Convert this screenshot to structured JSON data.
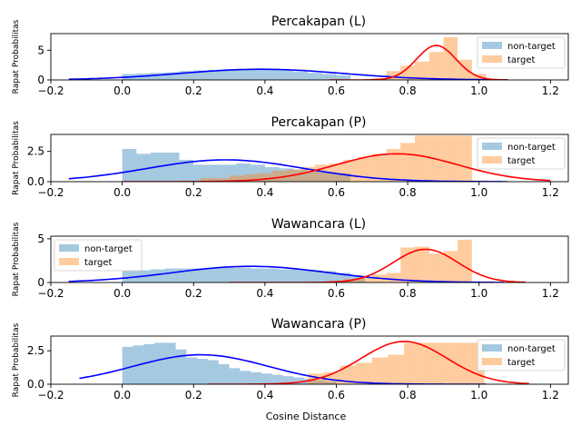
{
  "figure": {
    "xlabel": "Cosine Distance"
  },
  "chart_data": [
    {
      "type": "bar",
      "title": "Percakapan (L)",
      "ylabel": "Rapat Probabilitas",
      "xlim": [
        -0.2,
        1.25
      ],
      "ylim": [
        0,
        7.8
      ],
      "xticks": [
        "−0.2",
        "0.0",
        "0.2",
        "0.4",
        "0.6",
        "0.8",
        "1.0",
        "1.2"
      ],
      "yticks": [
        "0",
        "5"
      ],
      "legend": {
        "position": "top-right",
        "non_target": "non-target",
        "target": "target"
      },
      "nontarget_hist": {
        "start": 0.0,
        "width": 0.04,
        "values": [
          1.0,
          1.1,
          1.2,
          1.3,
          1.5,
          1.6,
          1.7,
          1.8,
          1.8,
          1.8,
          1.7,
          1.6,
          1.4,
          1.2,
          1.0,
          0.8
        ]
      },
      "target_hist": {
        "start": 0.7,
        "width": 0.04,
        "values": [
          0.3,
          1.5,
          2.4,
          3.1,
          4.7,
          7.2,
          3.4,
          1.0
        ]
      },
      "nontarget_fit": {
        "mean": 0.39,
        "sd": 0.23,
        "peak": 1.8,
        "range": [
          -0.15,
          1.08
        ]
      },
      "target_fit": {
        "mean": 0.88,
        "sd": 0.055,
        "peak": 5.8,
        "range": [
          0.58,
          1.08
        ]
      }
    },
    {
      "type": "bar",
      "title": "Percakapan (P)",
      "ylabel": "Rapat Probabilitas",
      "xlim": [
        -0.2,
        1.25
      ],
      "ylim": [
        0,
        3.9
      ],
      "xticks": [
        "−0.2",
        "0.0",
        "0.2",
        "0.4",
        "0.6",
        "0.8",
        "1.0",
        "1.2"
      ],
      "yticks": [
        "0.0",
        "2.5"
      ],
      "legend": {
        "position": "top-right",
        "non_target": "non-target",
        "target": "target"
      },
      "nontarget_hist": {
        "start": 0.0,
        "width": 0.04,
        "values": [
          2.7,
          2.3,
          2.4,
          2.4,
          1.8,
          1.4,
          1.4,
          1.4,
          1.5,
          1.4,
          1.2,
          1.1,
          1.0,
          0.9,
          0.8,
          0.7
        ]
      },
      "target_hist": {
        "start": 0.22,
        "width": 0.04,
        "values": [
          0.3,
          0.3,
          0.5,
          0.6,
          0.7,
          0.9,
          1.0,
          1.2,
          1.4,
          1.5,
          1.8,
          2.0,
          2.3,
          2.7,
          3.2,
          3.8,
          3.8,
          3.8,
          3.8,
          0.1
        ]
      },
      "nontarget_fit": {
        "mean": 0.29,
        "sd": 0.22,
        "peak": 1.8,
        "range": [
          -0.15,
          1.08
        ]
      },
      "target_fit": {
        "mean": 0.77,
        "sd": 0.17,
        "peak": 2.3,
        "range": [
          0.0,
          1.2
        ]
      }
    },
    {
      "type": "bar",
      "title": "Wawancara (L)",
      "ylabel": "Rapat Probabilitas",
      "xlim": [
        -0.2,
        1.25
      ],
      "ylim": [
        0,
        5.3
      ],
      "xticks": [
        "−0.2",
        "0.0",
        "0.2",
        "0.4",
        "0.6",
        "0.8",
        "1.0",
        "1.2"
      ],
      "yticks": [
        "0",
        "5"
      ],
      "legend": {
        "position": "top-left",
        "non_target": "non-target",
        "target": "target"
      },
      "nontarget_hist": {
        "start": 0.0,
        "width": 0.04,
        "values": [
          1.3,
          1.4,
          1.5,
          1.6,
          1.6,
          1.6,
          1.7,
          1.7,
          1.7,
          1.6,
          1.6,
          1.5,
          1.5,
          1.4,
          1.3,
          1.1,
          0.8
        ]
      },
      "target_hist": {
        "start": 0.58,
        "width": 0.04,
        "values": [
          0.2,
          0.4,
          0.6,
          0.9,
          1.1,
          4.0,
          4.1,
          3.3,
          3.6,
          4.9
        ]
      },
      "nontarget_fit": {
        "mean": 0.36,
        "sd": 0.22,
        "peak": 1.85,
        "range": [
          -0.15,
          1.07
        ]
      },
      "target_fit": {
        "mean": 0.85,
        "sd": 0.09,
        "peak": 3.8,
        "range": [
          0.3,
          1.13
        ]
      }
    },
    {
      "type": "bar",
      "title": "Wawancara (P)",
      "ylabel": "Rapat Probabilitas",
      "xlim": [
        -0.2,
        1.25
      ],
      "ylim": [
        0,
        3.6
      ],
      "xticks": [
        "−0.2",
        "0.0",
        "0.2",
        "0.4",
        "0.6",
        "0.8",
        "1.0",
        "1.2"
      ],
      "yticks": [
        "0.0",
        "2.5"
      ],
      "legend": {
        "position": "top-right",
        "non_target": "non-target",
        "target": "target"
      },
      "nontarget_hist": {
        "start": 0.0,
        "width": 0.03,
        "values": [
          2.8,
          2.9,
          3.0,
          3.1,
          3.1,
          2.6,
          2.0,
          1.9,
          1.8,
          1.5,
          1.2,
          1.0,
          0.9,
          0.8,
          0.7,
          0.6,
          0.5,
          0.4,
          0.3,
          0.2
        ]
      },
      "target_hist": {
        "start": 0.52,
        "width": 0.045,
        "values": [
          0.8,
          0.9,
          1.4,
          1.6,
          2.0,
          2.2,
          3.1,
          3.1,
          3.1,
          3.1,
          3.1
        ]
      },
      "nontarget_fit": {
        "mean": 0.22,
        "sd": 0.19,
        "peak": 2.2,
        "range": [
          -0.12,
          1.02
        ]
      },
      "target_fit": {
        "mean": 0.79,
        "sd": 0.12,
        "peak": 3.2,
        "range": [
          0.24,
          1.14
        ]
      }
    }
  ]
}
